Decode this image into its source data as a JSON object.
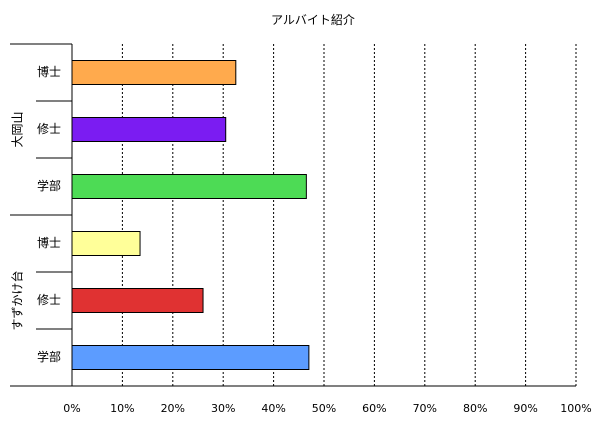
{
  "chart_data": {
    "type": "bar",
    "orientation": "horizontal",
    "title": "アルバイト紹介",
    "xlabel": "",
    "ylabel": "",
    "xlim": [
      0,
      100
    ],
    "x_ticks": [
      "0%",
      "10%",
      "20%",
      "30%",
      "40%",
      "50%",
      "60%",
      "70%",
      "80%",
      "90%",
      "100%"
    ],
    "grid": "vertical dotted",
    "legend": "none",
    "groups": [
      {
        "name": "大岡山",
        "bars": [
          {
            "category": "博士",
            "value": 32.5,
            "color": "#ffaa4d"
          },
          {
            "category": "修士",
            "value": 30.5,
            "color": "#7b1cf2"
          },
          {
            "category": "学部",
            "value": 46.5,
            "color": "#4ddb55"
          }
        ]
      },
      {
        "name": "すずかけ台",
        "bars": [
          {
            "category": "博士",
            "value": 13.5,
            "color": "#ffff99"
          },
          {
            "category": "修士",
            "value": 26.0,
            "color": "#e03232"
          },
          {
            "category": "学部",
            "value": 47.0,
            "color": "#5c9cff"
          }
        ]
      }
    ]
  }
}
